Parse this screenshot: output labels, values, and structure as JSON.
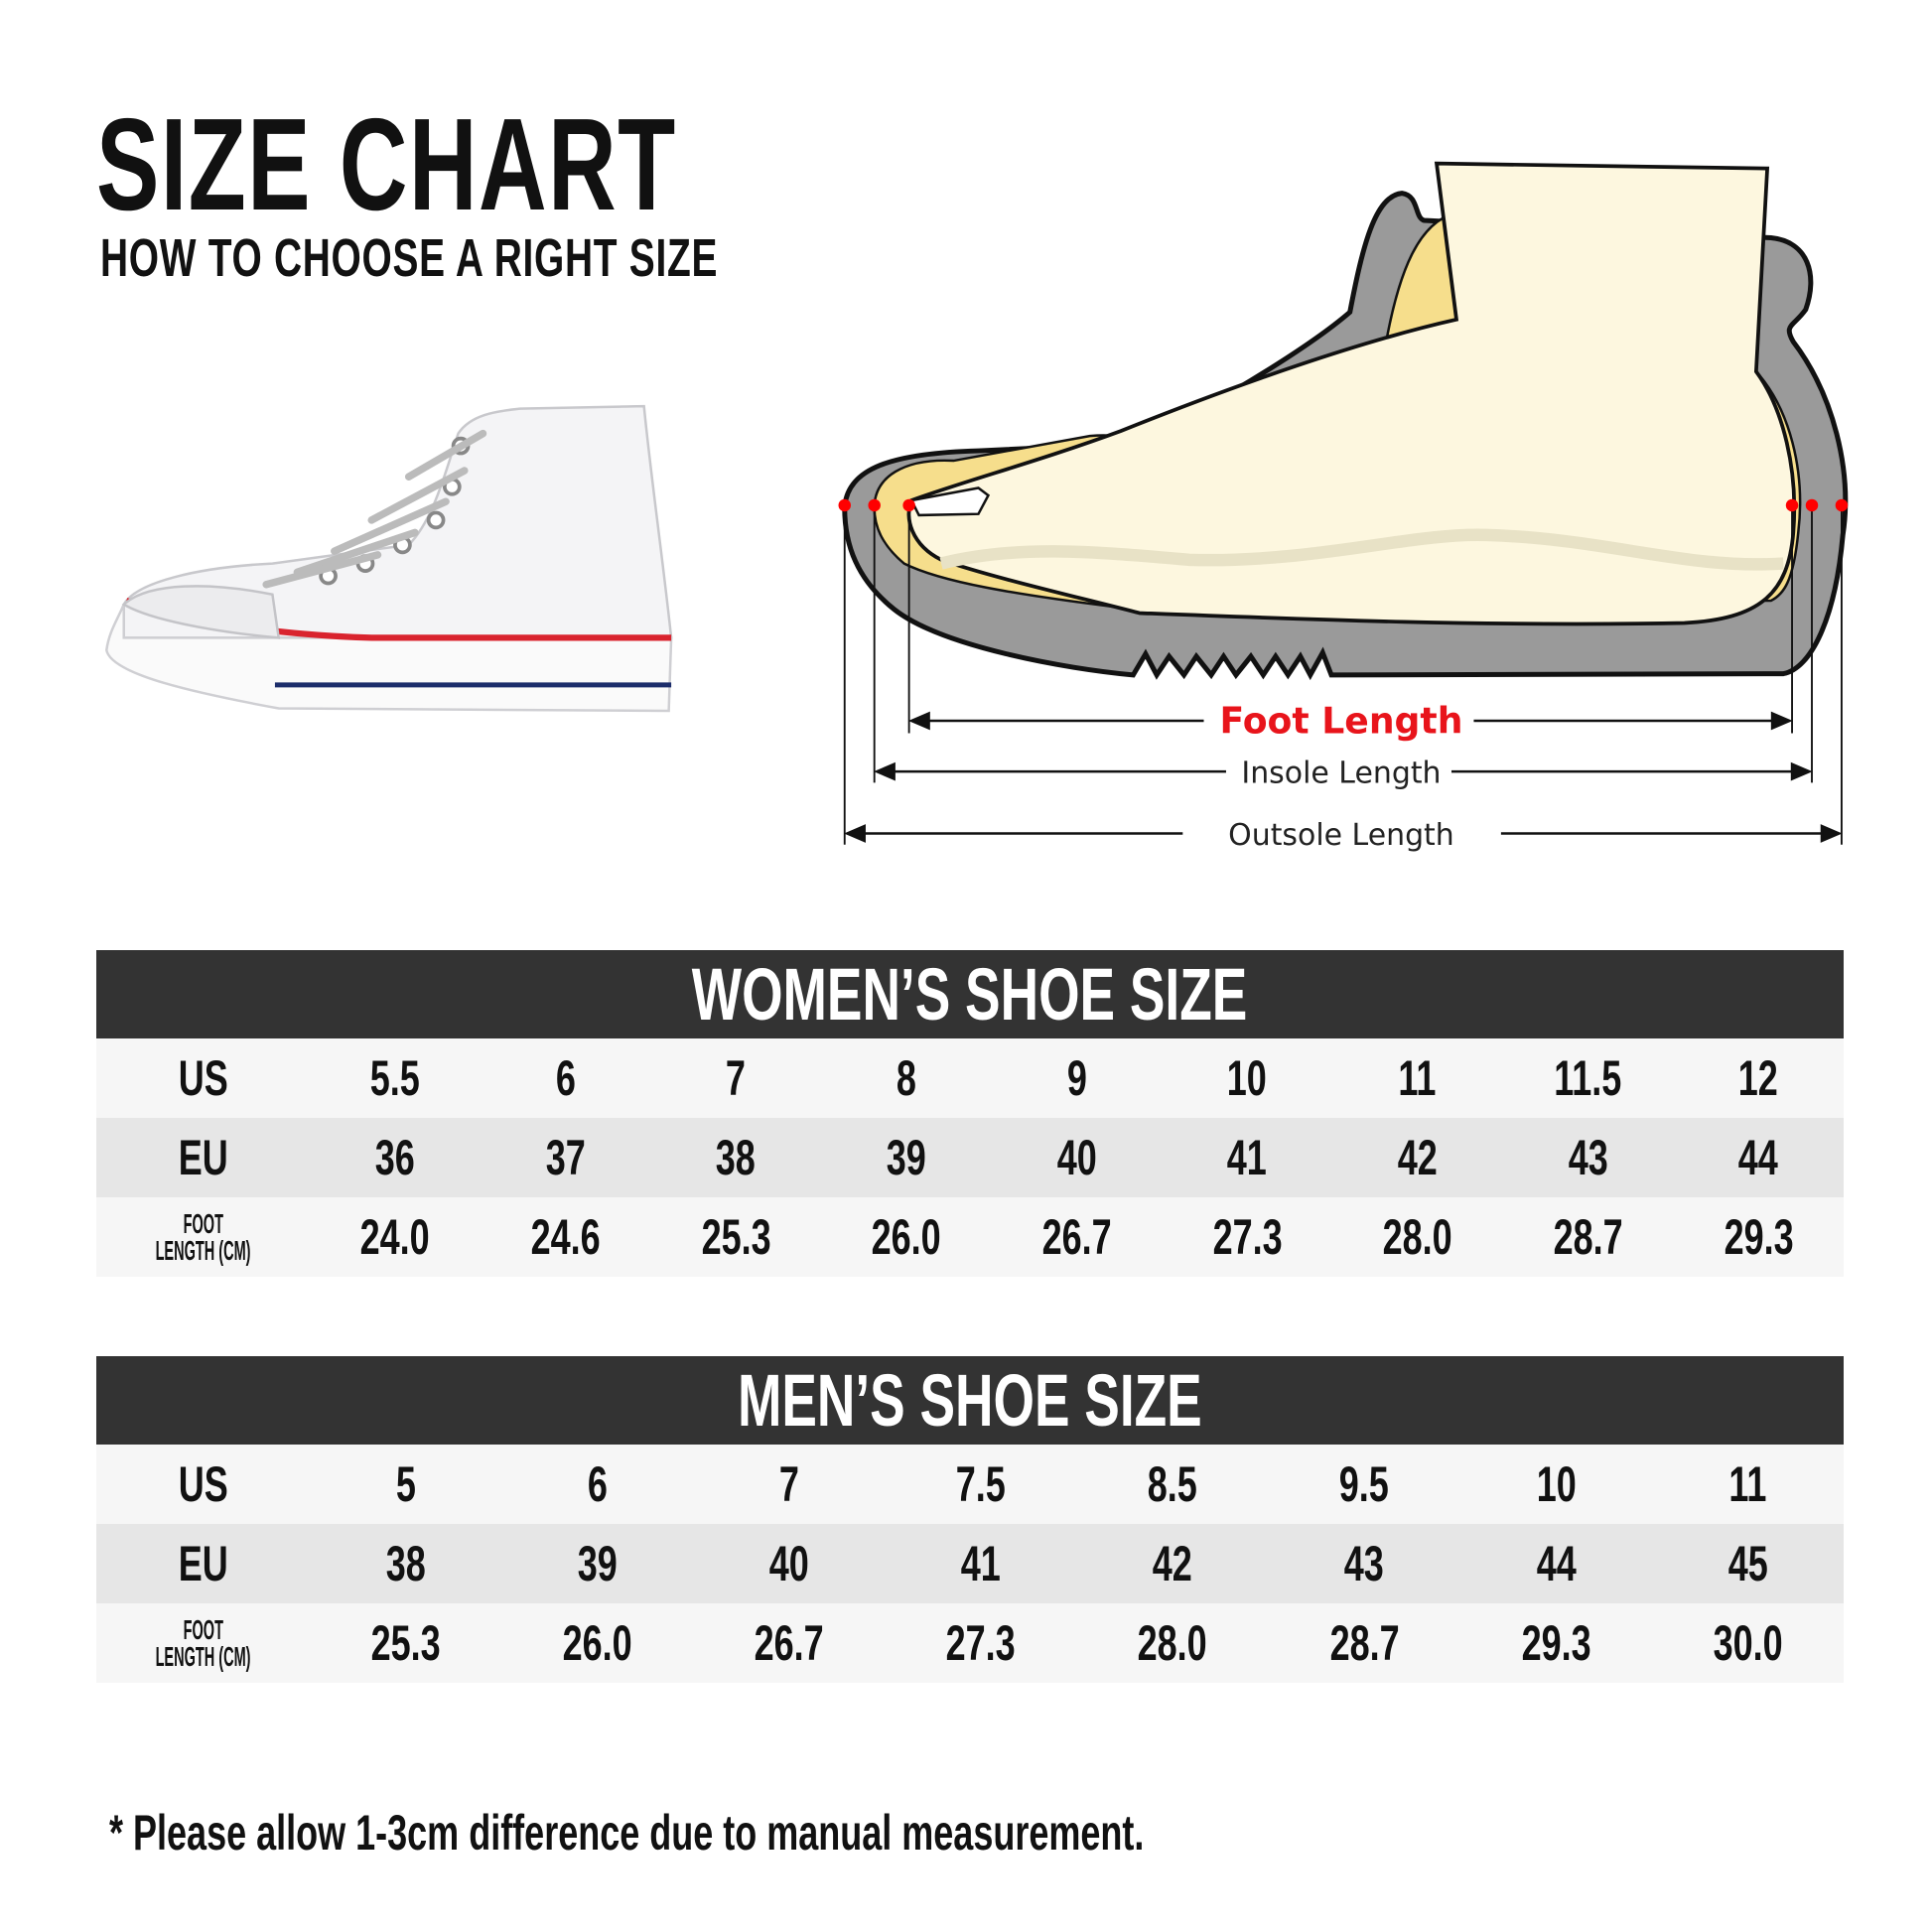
{
  "header": {
    "title": "SIZE CHART",
    "subtitle": "HOW TO CHOOSE A RIGHT SIZE"
  },
  "diagram": {
    "foot_length": "Foot Length",
    "insole_length": "Insole Length",
    "outsole_length": "Outsole Length",
    "colors": {
      "foot_length": "#e8141b",
      "sole": "#9a9a9a",
      "insole": "#f6de8c",
      "foot": "#fdf7df",
      "marker": "#ff0000"
    }
  },
  "women": {
    "title": "WOMEN’S SHOE SIZE",
    "rows": [
      {
        "label": "US",
        "values": [
          "5.5",
          "6",
          "7",
          "8",
          "9",
          "10",
          "11",
          "11.5",
          "12"
        ]
      },
      {
        "label": "EU",
        "values": [
          "36",
          "37",
          "38",
          "39",
          "40",
          "41",
          "42",
          "43",
          "44"
        ]
      },
      {
        "label_line1": "FOOT",
        "label_line2": "LENGTH (CM)",
        "values": [
          "24.0",
          "24.6",
          "25.3",
          "26.0",
          "26.7",
          "27.3",
          "28.0",
          "28.7",
          "29.3"
        ]
      }
    ]
  },
  "men": {
    "title": "MEN’S SHOE SIZE",
    "rows": [
      {
        "label": "US",
        "values": [
          "5",
          "6",
          "7",
          "7.5",
          "8.5",
          "9.5",
          "10",
          "11"
        ]
      },
      {
        "label": "EU",
        "values": [
          "38",
          "39",
          "40",
          "41",
          "42",
          "43",
          "44",
          "45"
        ]
      },
      {
        "label_line1": "FOOT",
        "label_line2": "LENGTH (CM)",
        "values": [
          "25.3",
          "26.0",
          "26.7",
          "27.3",
          "28.0",
          "28.7",
          "29.3",
          "30.0"
        ]
      }
    ]
  },
  "note": "* Please allow 1-3cm difference due to manual measurement."
}
